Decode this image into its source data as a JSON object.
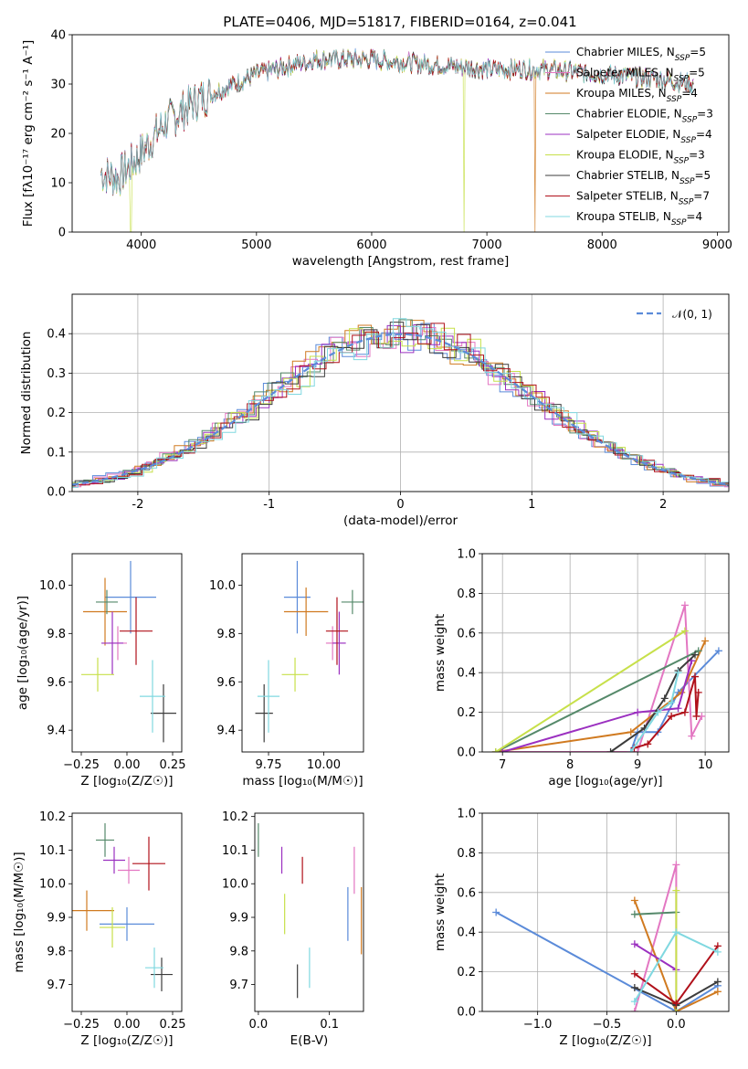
{
  "title": "PLATE=0406, MJD=51817, FIBERID=0164, z=0.041",
  "series": [
    {
      "name": "Chabrier MILES",
      "nssp": "5",
      "color": "#5b8bd9"
    },
    {
      "name": "Salpeter MILES",
      "nssp": "5",
      "color": "#e377c2"
    },
    {
      "name": "Kroupa MILES",
      "nssp": "4",
      "color": "#d07a20"
    },
    {
      "name": "Chabrier ELODIE",
      "nssp": "3",
      "color": "#55896a"
    },
    {
      "name": "Salpeter ELODIE",
      "nssp": "4",
      "color": "#9b30c0"
    },
    {
      "name": "Kroupa ELODIE",
      "nssp": "3",
      "color": "#c7e04a"
    },
    {
      "name": "Chabrier STELIB",
      "nssp": "5",
      "color": "#3c3c3c"
    },
    {
      "name": "Salpeter STELIB",
      "nssp": "7",
      "color": "#b0101a"
    },
    {
      "name": "Kroupa STELIB",
      "nssp": "4",
      "color": "#80d8e0"
    }
  ],
  "chart_data": [
    {
      "id": "spectrum",
      "type": "line",
      "xlabel": "wavelength [Angstrom, rest frame]",
      "ylabel": "Flux [fλ10⁻¹⁷ erg cm⁻² s⁻¹ A⁻¹]",
      "xlim": [
        3400,
        9100
      ],
      "ylim": [
        0,
        40
      ],
      "xticks": [
        4000,
        5000,
        6000,
        7000,
        8000,
        9000
      ],
      "yticks": [
        0,
        10,
        20,
        30,
        40
      ],
      "legend_position": "top-right",
      "x_start": 3650,
      "x_end": 8800,
      "continuum": [
        [
          3650,
          12
        ],
        [
          3800,
          11
        ],
        [
          4000,
          16
        ],
        [
          4200,
          22
        ],
        [
          4500,
          27
        ],
        [
          5000,
          32
        ],
        [
          5500,
          35
        ],
        [
          6000,
          35
        ],
        [
          6500,
          34
        ],
        [
          7000,
          33
        ],
        [
          7500,
          33
        ],
        [
          8000,
          32
        ],
        [
          8500,
          31
        ],
        [
          8800,
          30
        ]
      ],
      "dropouts": [
        {
          "x": 3910,
          "series": "Kroupa ELODIE"
        },
        {
          "x": 6800,
          "series": "Kroupa ELODIE"
        },
        {
          "x": 7420,
          "series": "Kroupa MILES"
        }
      ]
    },
    {
      "id": "residual-histogram",
      "type": "histogram",
      "xlabel": "(data-model)/error",
      "ylabel": "Normed distribution",
      "xlim": [
        -2.5,
        2.5
      ],
      "ylim": [
        0,
        0.5
      ],
      "xticks": [
        -2,
        -1,
        0,
        1,
        2
      ],
      "yticks": [
        0,
        0.1,
        0.2,
        0.3,
        0.4
      ],
      "grid": true,
      "legend_position": "top-right",
      "reference_curve": {
        "label": "𝒩(0, 1)",
        "mean": 0,
        "sigma": 1,
        "style": "dashed"
      },
      "bin_width": 0.1
    },
    {
      "id": "age-vs-Z",
      "type": "scatter-errorbar",
      "xlabel": "Z [log₁₀(Z/Z☉)]",
      "ylabel": "age  [log₁₀(age/yr)]",
      "xlim": [
        -0.3,
        0.3
      ],
      "ylim": [
        9.31,
        10.13
      ],
      "xticks": [
        -0.25,
        0.0,
        0.25
      ],
      "xticklabels": [
        "−0.25",
        "0.00",
        "0.25"
      ],
      "yticks": [
        9.4,
        9.6,
        9.8,
        10.0
      ],
      "points": [
        {
          "series": "Chabrier MILES",
          "x": 0.02,
          "y": 9.95,
          "xerr": 0.14,
          "yerr": 0.15
        },
        {
          "series": "Salpeter MILES",
          "x": -0.05,
          "y": 9.76,
          "xerr": 0.05,
          "yerr": 0.07
        },
        {
          "series": "Kroupa MILES",
          "x": -0.12,
          "y": 9.89,
          "xerr": 0.12,
          "yerr": 0.14
        },
        {
          "series": "Chabrier ELODIE",
          "x": -0.11,
          "y": 9.93,
          "xerr": 0.06,
          "yerr": 0.05
        },
        {
          "series": "Salpeter ELODIE",
          "x": -0.08,
          "y": 9.76,
          "xerr": 0.06,
          "yerr": 0.13
        },
        {
          "series": "Kroupa ELODIE",
          "x": -0.16,
          "y": 9.63,
          "xerr": 0.09,
          "yerr": 0.07
        },
        {
          "series": "Chabrier STELIB",
          "x": 0.2,
          "y": 9.47,
          "xerr": 0.07,
          "yerr": 0.12
        },
        {
          "series": "Salpeter STELIB",
          "x": 0.05,
          "y": 9.81,
          "xerr": 0.09,
          "yerr": 0.14
        },
        {
          "series": "Kroupa STELIB",
          "x": 0.14,
          "y": 9.54,
          "xerr": 0.07,
          "yerr": 0.15
        }
      ]
    },
    {
      "id": "age-vs-mass",
      "type": "scatter-errorbar",
      "xlabel": "mass [log₁₀(M/M☉)]",
      "ylabel": "",
      "xlim": [
        9.63,
        10.18
      ],
      "ylim": [
        9.31,
        10.13
      ],
      "xticks": [
        9.75,
        10.0
      ],
      "xticklabels": [
        "9.75",
        "10.00"
      ],
      "yticks": [
        9.4,
        9.6,
        9.8,
        10.0
      ],
      "points": [
        {
          "series": "Chabrier MILES",
          "x": 9.88,
          "y": 9.95,
          "xerr": 0.06,
          "yerr": 0.15
        },
        {
          "series": "Salpeter MILES",
          "x": 10.04,
          "y": 9.76,
          "xerr": 0.03,
          "yerr": 0.07
        },
        {
          "series": "Kroupa MILES",
          "x": 9.92,
          "y": 9.89,
          "xerr": 0.1,
          "yerr": 0.1
        },
        {
          "series": "Chabrier ELODIE",
          "x": 10.13,
          "y": 9.93,
          "xerr": 0.05,
          "yerr": 0.05
        },
        {
          "series": "Salpeter ELODIE",
          "x": 10.07,
          "y": 9.76,
          "xerr": 0.03,
          "yerr": 0.13
        },
        {
          "series": "Kroupa ELODIE",
          "x": 9.87,
          "y": 9.63,
          "xerr": 0.06,
          "yerr": 0.07
        },
        {
          "series": "Chabrier STELIB",
          "x": 9.73,
          "y": 9.47,
          "xerr": 0.04,
          "yerr": 0.12
        },
        {
          "series": "Salpeter STELIB",
          "x": 10.06,
          "y": 9.81,
          "xerr": 0.05,
          "yerr": 0.14
        },
        {
          "series": "Kroupa STELIB",
          "x": 9.75,
          "y": 9.54,
          "xerr": 0.05,
          "yerr": 0.15
        }
      ]
    },
    {
      "id": "mass-weight-vs-age",
      "type": "line",
      "xlabel": "age  [log₁₀(age/yr)]",
      "ylabel": "mass weight",
      "xlim": [
        6.7,
        10.35
      ],
      "ylim": [
        0,
        1.0
      ],
      "xticks": [
        7,
        8,
        9,
        10
      ],
      "yticks": [
        0,
        0.2,
        0.4,
        0.6,
        0.8,
        1.0
      ],
      "grid": true,
      "series": [
        {
          "name": "Chabrier MILES",
          "points": [
            [
              8.9,
              0
            ],
            [
              9.0,
              0.1
            ],
            [
              9.3,
              0.1
            ],
            [
              9.6,
              0.3
            ],
            [
              10.2,
              0.51
            ]
          ]
        },
        {
          "name": "Salpeter MILES",
          "points": [
            [
              6.9,
              0
            ],
            [
              9.0,
              0
            ],
            [
              9.7,
              0.74
            ],
            [
              9.8,
              0.08
            ],
            [
              9.95,
              0.18
            ]
          ]
        },
        {
          "name": "Kroupa MILES",
          "points": [
            [
              6.9,
              0
            ],
            [
              8.9,
              0.1
            ],
            [
              9.65,
              0.3
            ],
            [
              10.0,
              0.56
            ]
          ]
        },
        {
          "name": "Chabrier ELODIE",
          "points": [
            [
              6.9,
              0
            ],
            [
              9.9,
              0.51
            ]
          ]
        },
        {
          "name": "Salpeter ELODIE",
          "points": [
            [
              7.0,
              0
            ],
            [
              9.0,
              0.2
            ],
            [
              9.6,
              0.22
            ],
            [
              9.8,
              0.46
            ]
          ]
        },
        {
          "name": "Kroupa ELODIE",
          "points": [
            [
              6.9,
              0
            ],
            [
              9.7,
              0.61
            ]
          ]
        },
        {
          "name": "Chabrier STELIB",
          "points": [
            [
              8.6,
              0
            ],
            [
              9.1,
              0.12
            ],
            [
              9.4,
              0.27
            ],
            [
              9.6,
              0.41
            ],
            [
              9.85,
              0.49
            ]
          ]
        },
        {
          "name": "Salpeter STELIB",
          "points": [
            [
              8.95,
              0.02
            ],
            [
              9.15,
              0.04
            ],
            [
              9.5,
              0.18
            ],
            [
              9.7,
              0.2
            ],
            [
              9.85,
              0.38
            ],
            [
              9.87,
              0.18
            ],
            [
              9.9,
              0.3
            ]
          ]
        },
        {
          "name": "Kroupa STELIB",
          "points": [
            [
              8.9,
              0
            ],
            [
              9.3,
              0.2
            ],
            [
              9.5,
              0.25
            ],
            [
              9.6,
              0.4
            ]
          ]
        }
      ]
    },
    {
      "id": "mass-vs-Z",
      "type": "scatter-errorbar",
      "xlabel": "Z [log₁₀(Z/Z☉)]",
      "ylabel": "mass [log₁₀(M/M☉)]",
      "xlim": [
        -0.3,
        0.3
      ],
      "ylim": [
        9.62,
        10.21
      ],
      "xticks": [
        -0.25,
        0.0,
        0.25
      ],
      "xticklabels": [
        "−0.25",
        "0.00",
        "0.25"
      ],
      "yticks": [
        9.7,
        9.8,
        9.9,
        10.0,
        10.1,
        10.2
      ],
      "points": [
        {
          "series": "Chabrier MILES",
          "x": 0.0,
          "y": 9.88,
          "xerr": 0.15,
          "yerr": 0.05
        },
        {
          "series": "Salpeter MILES",
          "x": 0.01,
          "y": 10.04,
          "xerr": 0.06,
          "yerr": 0.04
        },
        {
          "series": "Kroupa MILES",
          "x": -0.22,
          "y": 9.92,
          "xerr": 0.15,
          "yerr": 0.06
        },
        {
          "series": "Chabrier ELODIE",
          "x": -0.12,
          "y": 10.13,
          "xerr": 0.05,
          "yerr": 0.05
        },
        {
          "series": "Salpeter ELODIE",
          "x": -0.07,
          "y": 10.07,
          "xerr": 0.06,
          "yerr": 0.04
        },
        {
          "series": "Kroupa ELODIE",
          "x": -0.08,
          "y": 9.87,
          "xerr": 0.07,
          "yerr": 0.06
        },
        {
          "series": "Chabrier STELIB",
          "x": 0.19,
          "y": 9.73,
          "xerr": 0.06,
          "yerr": 0.05
        },
        {
          "series": "Salpeter STELIB",
          "x": 0.12,
          "y": 10.06,
          "xerr": 0.09,
          "yerr": 0.08
        },
        {
          "series": "Kroupa STELIB",
          "x": 0.15,
          "y": 9.75,
          "xerr": 0.05,
          "yerr": 0.06
        }
      ]
    },
    {
      "id": "mass-vs-EBV",
      "type": "scatter-errorbar",
      "xlabel": "E(B-V)",
      "ylabel": "",
      "xlim": [
        -0.005,
        0.148
      ],
      "ylim": [
        9.62,
        10.21
      ],
      "xticks": [
        0.0,
        0.1
      ],
      "xticklabels": [
        "0.0",
        "0.1"
      ],
      "yticks": [
        9.7,
        9.8,
        9.9,
        10.0,
        10.1,
        10.2
      ],
      "points": [
        {
          "series": "Chabrier MILES",
          "x": 0.126,
          "y": 9.91,
          "xerr": 0,
          "yerr": 0.08
        },
        {
          "series": "Salpeter MILES",
          "x": 0.135,
          "y": 10.04,
          "xerr": 0,
          "yerr": 0.07
        },
        {
          "series": "Kroupa MILES",
          "x": 0.145,
          "y": 9.89,
          "xerr": 0,
          "yerr": 0.1
        },
        {
          "series": "Chabrier ELODIE",
          "x": 0.0,
          "y": 10.13,
          "xerr": 0,
          "yerr": 0.05
        },
        {
          "series": "Salpeter ELODIE",
          "x": 0.033,
          "y": 10.07,
          "xerr": 0,
          "yerr": 0.04
        },
        {
          "series": "Kroupa ELODIE",
          "x": 0.037,
          "y": 9.91,
          "xerr": 0,
          "yerr": 0.06
        },
        {
          "series": "Chabrier STELIB",
          "x": 0.055,
          "y": 9.71,
          "xerr": 0,
          "yerr": 0.05
        },
        {
          "series": "Salpeter STELIB",
          "x": 0.062,
          "y": 10.04,
          "xerr": 0,
          "yerr": 0.04
        },
        {
          "series": "Kroupa STELIB",
          "x": 0.072,
          "y": 9.75,
          "xerr": 0,
          "yerr": 0.06
        }
      ]
    },
    {
      "id": "mass-weight-vs-Z",
      "type": "line",
      "xlabel": "Z [log₁₀(Z/Z☉)]",
      "ylabel": "mass weight",
      "xlim": [
        -1.4,
        0.38
      ],
      "ylim": [
        0,
        1.0
      ],
      "xticks": [
        -1.0,
        -0.5,
        0.0
      ],
      "xticklabels": [
        "−1.0",
        "−0.5",
        "0.0"
      ],
      "yticks": [
        0,
        0.2,
        0.4,
        0.6,
        0.8,
        1.0
      ],
      "grid": true,
      "series": [
        {
          "name": "Chabrier MILES",
          "points": [
            [
              -1.3,
              0.5
            ],
            [
              0.0,
              0.0
            ],
            [
              0.3,
              0.13
            ]
          ]
        },
        {
          "name": "Salpeter MILES",
          "points": [
            [
              -0.3,
              0.0
            ],
            [
              0.0,
              0.74
            ],
            [
              0.0,
              0.0
            ]
          ]
        },
        {
          "name": "Kroupa MILES",
          "points": [
            [
              -0.3,
              0.56
            ],
            [
              0.0,
              0.0
            ],
            [
              0.3,
              0.1
            ]
          ]
        },
        {
          "name": "Chabrier ELODIE",
          "points": [
            [
              -0.3,
              0.49
            ],
            [
              0.0,
              0.5
            ]
          ]
        },
        {
          "name": "Salpeter ELODIE",
          "points": [
            [
              -0.3,
              0.34
            ],
            [
              0.0,
              0.21
            ]
          ]
        },
        {
          "name": "Kroupa ELODIE",
          "points": [
            [
              0.0,
              0.61
            ],
            [
              0.0,
              0.0
            ]
          ]
        },
        {
          "name": "Chabrier STELIB",
          "points": [
            [
              -0.3,
              0.12
            ],
            [
              0.0,
              0.03
            ],
            [
              0.3,
              0.15
            ]
          ]
        },
        {
          "name": "Salpeter STELIB",
          "points": [
            [
              -0.3,
              0.19
            ],
            [
              0.0,
              0.04
            ],
            [
              0.3,
              0.33
            ]
          ]
        },
        {
          "name": "Kroupa STELIB",
          "points": [
            [
              -0.3,
              0.05
            ],
            [
              0.0,
              0.4
            ],
            [
              0.3,
              0.3
            ]
          ]
        }
      ]
    }
  ]
}
